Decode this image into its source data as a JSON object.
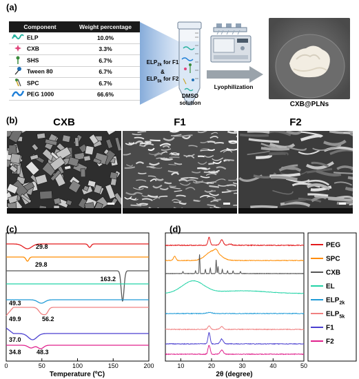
{
  "panel_a": {
    "label": "(a)",
    "table": {
      "headers": [
        "Component",
        "Weight percentage"
      ],
      "rows": [
        {
          "name": "ELP",
          "pct": "10.0%",
          "icon": "elp-icon",
          "color": "#2ab3a0"
        },
        {
          "name": "CXB",
          "pct": "3.3%",
          "icon": "cxb-icon",
          "color": "#e0457b"
        },
        {
          "name": "SHS",
          "pct": "6.7%",
          "icon": "shs-icon",
          "color": "#3a8a3a"
        },
        {
          "name": "Tween 80",
          "pct": "6.7%",
          "icon": "tween-icon",
          "color": "#1f6fb5"
        },
        {
          "name": "SPC",
          "pct": "6.7%",
          "icon": "spc-icon",
          "color": "#c9a227"
        },
        {
          "name": "PEG 1000",
          "pct": "66.6%",
          "icon": "peg-icon",
          "color": "#1e7fd8"
        }
      ]
    },
    "elp_f1_base": "ELP",
    "elp_f1_sub": "2k",
    "elp_f1_suffix": " for F1",
    "amp": "&",
    "elp_f2_base": "ELP",
    "elp_f2_sub": "5k",
    "elp_f2_suffix": " for F2",
    "tube_label_1": "DMSO",
    "tube_label_2": "solution",
    "arrow_label": "Lyophilization",
    "product_label": "CXB@PLNs"
  },
  "panel_b": {
    "label": "(b)",
    "titles": [
      "CXB",
      "F1",
      "F2"
    ]
  },
  "panel_c": {
    "label": "(c)",
    "chart_data": {
      "type": "line",
      "xlabel": "Temperature (ºC)",
      "xlim": [
        0,
        200
      ],
      "xticks": [
        0,
        50,
        100,
        150,
        200
      ],
      "annotations": [
        "29.8",
        "29.8",
        "163.2",
        "49.3",
        "49.9",
        "56.2",
        "37.0",
        "34.8",
        "48.3"
      ]
    }
  },
  "panel_d": {
    "label": "(d)",
    "chart_data": {
      "type": "line",
      "xlabel": "2θ (degree)",
      "xlim": [
        5,
        50
      ],
      "xticks": [
        10,
        20,
        30,
        40,
        50
      ],
      "legend": [
        {
          "name": "PEG",
          "base": "PEG",
          "sub": "",
          "color": "#e31a1c"
        },
        {
          "name": "SPC",
          "base": "SPC",
          "sub": "",
          "color": "#ff8c00"
        },
        {
          "name": "CXB",
          "base": "CXB",
          "sub": "",
          "color": "#555555"
        },
        {
          "name": "EL",
          "base": "EL",
          "sub": "",
          "color": "#22d3a6"
        },
        {
          "name": "ELP2k",
          "base": "ELP",
          "sub": "2k",
          "color": "#1f9bd7"
        },
        {
          "name": "ELP5k",
          "base": "ELP",
          "sub": "5k",
          "color": "#f08080"
        },
        {
          "name": "F1",
          "base": "F1",
          "sub": "",
          "color": "#4a3fd0"
        },
        {
          "name": "F2",
          "base": "F2",
          "sub": "",
          "color": "#e0208c"
        }
      ]
    }
  }
}
